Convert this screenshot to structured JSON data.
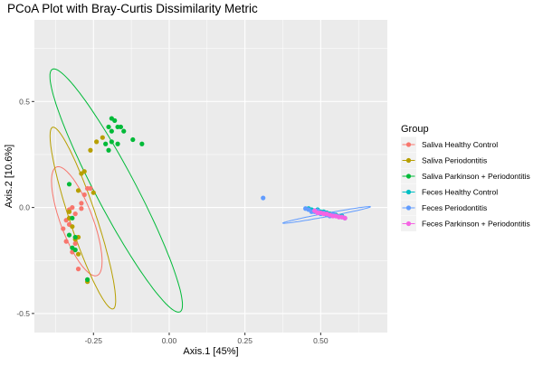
{
  "chart_data": {
    "type": "scatter",
    "title": "PCoA Plot with Bray-Curtis Dissimilarity Metric",
    "xlabel": "Axis.1   [45%]",
    "ylabel": "Axis.2   [10.6%]",
    "xlim": [
      -0.445,
      0.72
    ],
    "ylim": [
      -0.59,
      0.885
    ],
    "x_ticks": [
      -0.25,
      0.0,
      0.25,
      0.5
    ],
    "x_tick_labels": [
      "-0.25",
      "0.00",
      "0.25",
      "0.50"
    ],
    "y_ticks": [
      -0.5,
      0.0,
      0.5
    ],
    "y_tick_labels": [
      "-0.5",
      "0.0",
      "0.5"
    ],
    "grid": true,
    "legend": {
      "title": "Group",
      "position": "right"
    },
    "series": [
      {
        "name": "Saliva Healthy Control",
        "color": "#F8766D",
        "points": [
          [
            -0.27,
            0.09
          ],
          [
            -0.26,
            0.09
          ],
          [
            -0.28,
            0.06
          ],
          [
            -0.29,
            0.02
          ],
          [
            -0.32,
            0.0
          ],
          [
            -0.33,
            -0.01
          ],
          [
            -0.29,
            -0.005
          ],
          [
            -0.31,
            -0.03
          ],
          [
            -0.34,
            -0.06
          ],
          [
            -0.33,
            -0.08
          ],
          [
            -0.35,
            -0.1
          ],
          [
            -0.34,
            -0.16
          ],
          [
            -0.31,
            -0.17
          ],
          [
            -0.32,
            -0.21
          ],
          [
            -0.3,
            -0.29
          ]
        ],
        "ellipse": {
          "cx": -0.305,
          "cy": -0.065,
          "rx": 0.265,
          "ry": 0.055,
          "angle_deg": -76
        }
      },
      {
        "name": "Saliva Periodontitis",
        "color": "#B79F00",
        "points": [
          [
            -0.26,
            0.27
          ],
          [
            -0.24,
            0.31
          ],
          [
            -0.22,
            0.33
          ],
          [
            -0.29,
            0.16
          ],
          [
            -0.28,
            0.17
          ],
          [
            -0.3,
            0.08
          ],
          [
            -0.25,
            0.07
          ],
          [
            -0.33,
            -0.05
          ],
          [
            -0.32,
            -0.09
          ],
          [
            -0.3,
            -0.14
          ],
          [
            -0.3,
            -0.22
          ],
          [
            -0.27,
            -0.35
          ],
          [
            -0.33,
            -0.02
          ],
          [
            -0.31,
            -0.15
          ]
        ],
        "ellipse": {
          "cx": -0.285,
          "cy": -0.05,
          "rx": 0.44,
          "ry": 0.045,
          "angle_deg": -77
        }
      },
      {
        "name": "Saliva Parkinson + Periodontitis",
        "color": "#00BA38",
        "points": [
          [
            -0.19,
            0.42
          ],
          [
            -0.18,
            0.41
          ],
          [
            -0.2,
            0.38
          ],
          [
            -0.17,
            0.38
          ],
          [
            -0.16,
            0.38
          ],
          [
            -0.19,
            0.36
          ],
          [
            -0.15,
            0.36
          ],
          [
            -0.12,
            0.32
          ],
          [
            -0.09,
            0.3
          ],
          [
            -0.21,
            0.3
          ],
          [
            -0.19,
            0.31
          ],
          [
            -0.17,
            0.3
          ],
          [
            -0.2,
            0.27
          ],
          [
            -0.33,
            0.11
          ],
          [
            -0.32,
            -0.05
          ],
          [
            -0.33,
            -0.13
          ],
          [
            -0.31,
            -0.14
          ],
          [
            -0.32,
            -0.19
          ],
          [
            -0.31,
            -0.2
          ],
          [
            -0.27,
            -0.34
          ]
        ],
        "ellipse": {
          "cx": -0.175,
          "cy": 0.08,
          "rx": 0.61,
          "ry": 0.07,
          "angle_deg": -70
        }
      },
      {
        "name": "Feces Healthy Control",
        "color": "#00BFC4",
        "points": [
          [
            0.46,
            -0.005
          ],
          [
            0.47,
            -0.01
          ],
          [
            0.48,
            -0.015
          ],
          [
            0.49,
            -0.01
          ],
          [
            0.5,
            -0.02
          ],
          [
            0.51,
            -0.02
          ],
          [
            0.52,
            -0.025
          ],
          [
            0.53,
            -0.03
          ],
          [
            0.55,
            -0.035
          ],
          [
            0.57,
            -0.04
          ]
        ],
        "ellipse": null
      },
      {
        "name": "Feces Periodontitis",
        "color": "#619CFF",
        "points": [
          [
            0.31,
            0.045
          ],
          [
            0.45,
            -0.005
          ],
          [
            0.46,
            -0.01
          ],
          [
            0.47,
            -0.02
          ],
          [
            0.48,
            -0.02
          ],
          [
            0.49,
            -0.015
          ],
          [
            0.5,
            -0.03
          ],
          [
            0.51,
            -0.025
          ],
          [
            0.52,
            -0.035
          ],
          [
            0.53,
            -0.04
          ],
          [
            0.54,
            -0.03
          ],
          [
            0.55,
            -0.04
          ],
          [
            0.57,
            -0.045
          ],
          [
            0.58,
            -0.05
          ]
        ],
        "ellipse": {
          "cx": 0.52,
          "cy": -0.035,
          "rx": 0.15,
          "ry": 0.008,
          "angle_deg": 15
        }
      },
      {
        "name": "Feces Parkinson + Periodontitis",
        "color": "#F564E3",
        "points": [
          [
            0.48,
            -0.015
          ],
          [
            0.49,
            -0.025
          ],
          [
            0.5,
            -0.025
          ],
          [
            0.51,
            -0.03
          ],
          [
            0.52,
            -0.03
          ],
          [
            0.53,
            -0.035
          ],
          [
            0.54,
            -0.04
          ],
          [
            0.55,
            -0.04
          ],
          [
            0.56,
            -0.045
          ],
          [
            0.57,
            -0.045
          ],
          [
            0.58,
            -0.05
          ]
        ],
        "ellipse": null
      }
    ]
  }
}
